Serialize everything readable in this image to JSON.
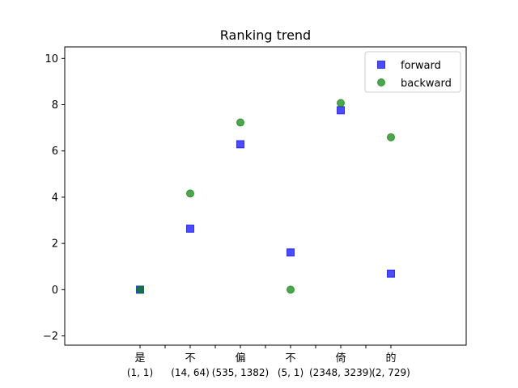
{
  "chart_data": {
    "type": "scatter",
    "title": "Ranking trend",
    "xlabel": "",
    "ylabel": "",
    "categories": [
      {
        "glyph": "是",
        "pair": "(1, 1)"
      },
      {
        "glyph": "不",
        "pair": "(14, 64)"
      },
      {
        "glyph": "偏",
        "pair": "(535, 1382)"
      },
      {
        "glyph": "不",
        "pair": "(5, 1)"
      },
      {
        "glyph": "倚",
        "pair": "(2348, 3239)"
      },
      {
        "glyph": "的",
        "pair": "(2, 729)"
      }
    ],
    "ylim": [
      -2.4,
      10.5
    ],
    "yticks": [
      -2,
      0,
      2,
      4,
      6,
      8,
      10
    ],
    "grid": false,
    "legend_position": "top-right",
    "series": [
      {
        "name": "forward",
        "marker": "square",
        "color": "#0000ff",
        "values": [
          0,
          2.64,
          6.29,
          1.61,
          7.76,
          0.69
        ]
      },
      {
        "name": "backward",
        "marker": "circle",
        "color": "#008000",
        "values": [
          0,
          4.16,
          7.23,
          0,
          8.07,
          6.59
        ]
      }
    ]
  }
}
